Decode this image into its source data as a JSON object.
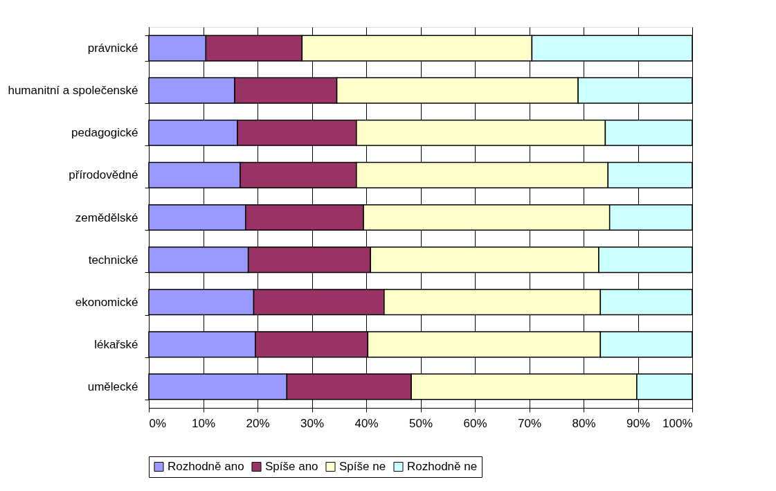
{
  "chart_data": {
    "type": "bar",
    "orientation": "horizontal",
    "stacked": true,
    "categories": [
      "právnické",
      "humanitní a společenské",
      "pedagogické",
      "přírodovědné",
      "zemědělské",
      "technické",
      "ekonomické",
      "lékařské",
      "umělecké"
    ],
    "series": [
      {
        "name": "Rozhodně ano",
        "color": "#9999ff",
        "values": [
          10.5,
          15.8,
          16.3,
          16.8,
          17.8,
          18.3,
          19.3,
          19.6,
          25.4
        ]
      },
      {
        "name": "Spíše ano",
        "color": "#993366",
        "values": [
          17.7,
          18.8,
          21.9,
          21.4,
          21.7,
          22.5,
          24.0,
          20.7,
          22.9
        ]
      },
      {
        "name": "Spíše ne",
        "color": "#ffffcc",
        "values": [
          42.3,
          44.4,
          45.8,
          46.3,
          45.3,
          42.0,
          39.8,
          42.8,
          41.5
        ]
      },
      {
        "name": "Rozhodně ne",
        "color": "#ccffff",
        "values": [
          29.5,
          21.0,
          16.0,
          15.5,
          15.2,
          17.2,
          16.9,
          16.9,
          10.2
        ]
      }
    ],
    "xlim": [
      0,
      100
    ],
    "xticks": [
      {
        "value": 0,
        "label": "0%"
      },
      {
        "value": 10,
        "label": "10%"
      },
      {
        "value": 20,
        "label": "20%"
      },
      {
        "value": 30,
        "label": "30%"
      },
      {
        "value": 40,
        "label": "40%"
      },
      {
        "value": 50,
        "label": "50%"
      },
      {
        "value": 60,
        "label": "60%"
      },
      {
        "value": 70,
        "label": "70%"
      },
      {
        "value": 80,
        "label": "80%"
      },
      {
        "value": 90,
        "label": "90%"
      },
      {
        "value": 100,
        "label": "100%"
      }
    ],
    "grid": "x",
    "legend": "bottom"
  }
}
